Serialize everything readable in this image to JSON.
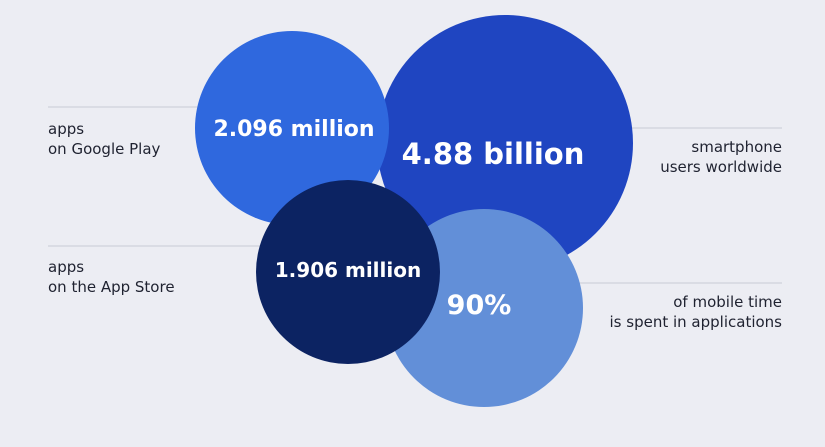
{
  "colors": {
    "background": "#ecedf3",
    "line": "#c9cbd4",
    "label_text": "#1f2230",
    "value_text": "#ffffff",
    "google_play_bubble": "#2f68de",
    "smartphone_bubble": "#1f45c1",
    "app_store_bubble": "#0c2362",
    "mobile_time_bubble": "#628fd8"
  },
  "bubbles": {
    "google_play": {
      "value": "2.096 million",
      "label_lines": [
        "apps",
        "on Google Play"
      ]
    },
    "smartphone_users": {
      "value": "4.88 billion",
      "label_lines": [
        "smartphone",
        "users worldwide"
      ]
    },
    "app_store": {
      "value": "1.906 million",
      "label_lines": [
        "apps",
        "on the App Store"
      ]
    },
    "mobile_time": {
      "value": "90%",
      "label_lines": [
        "of mobile time",
        "is spent in applications"
      ]
    }
  }
}
